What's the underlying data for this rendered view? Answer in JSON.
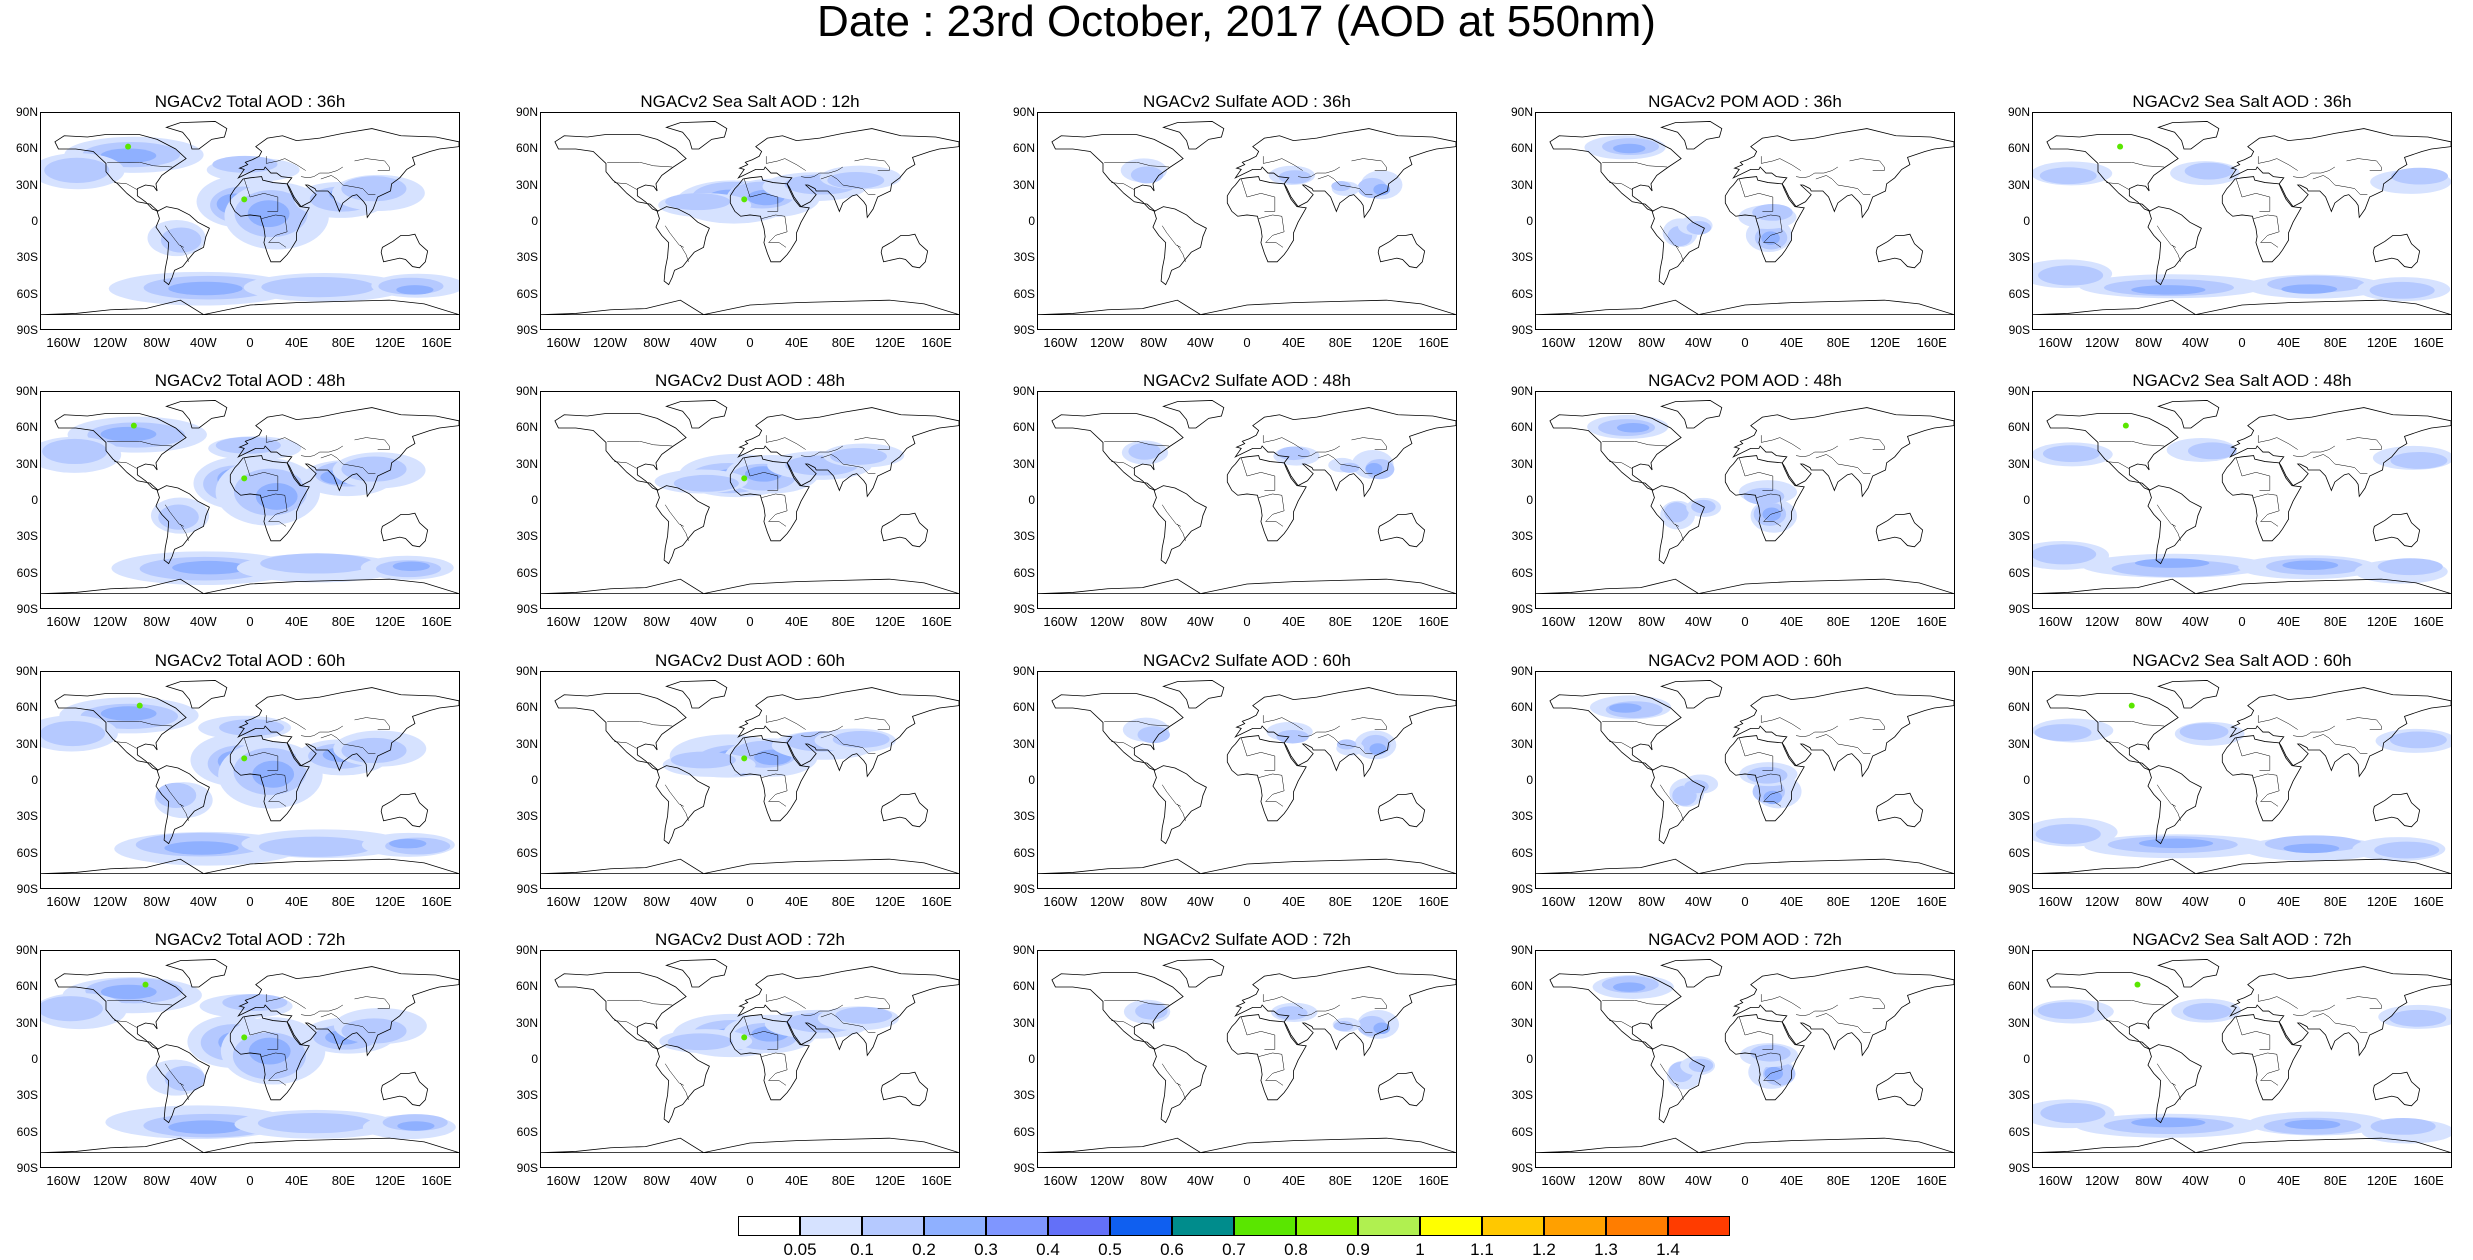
{
  "title": "Date : 23rd October, 2017 (AOD at 550nm)",
  "lat_labels": [
    "90N",
    "60N",
    "30N",
    "0",
    "30S",
    "60S",
    "90S"
  ],
  "lon_labels": [
    "160W",
    "120W",
    "80W",
    "40W",
    "0",
    "40E",
    "80E",
    "120E",
    "160E"
  ],
  "panel_rows": [
    [
      "NGACv2 Total AOD : 36h",
      "NGACv2 Sea Salt  AOD : 12h",
      "NGACv2 Sulfate AOD : 36h",
      "NGACv2 POM AOD : 36h",
      "NGACv2 Sea Salt AOD : 36h"
    ],
    [
      "NGACv2 Total AOD : 48h",
      "NGACv2 Dust AOD : 48h",
      "NGACv2 Sulfate AOD : 48h",
      "NGACv2 POM AOD : 48h",
      "NGACv2 Sea Salt AOD : 48h"
    ],
    [
      "NGACv2 Total AOD : 60h",
      "NGACv2 Dust AOD : 60h",
      "NGACv2 Sulfate AOD : 60h",
      "NGACv2 POM AOD : 60h",
      "NGACv2 Sea Salt AOD : 60h"
    ],
    [
      "NGACv2 Total AOD : 72h",
      "NGACv2 Dust AOD : 72h",
      "NGACv2 Sulfate AOD : 72h",
      "NGACv2 POM AOD : 72h",
      "NGACv2 Sea Salt  AOD : 72h"
    ]
  ],
  "colorbar": {
    "labels": [
      "0.05",
      "0.1",
      "0.2",
      "0.3",
      "0.4",
      "0.5",
      "0.6",
      "0.7",
      "0.8",
      "0.9",
      "1",
      "1.1",
      "1.2",
      "1.3",
      "1.4"
    ],
    "colors": [
      "#ffffff",
      "#d6e2ff",
      "#b5c9ff",
      "#8fb0ff",
      "#7f96ff",
      "#6370f8",
      "#0f5ff0",
      "#008c8c",
      "#5ae600",
      "#8af000",
      "#b0f050",
      "#ffff00",
      "#ffc800",
      "#ffa000",
      "#ff7d00",
      "#ff3c00"
    ]
  }
}
